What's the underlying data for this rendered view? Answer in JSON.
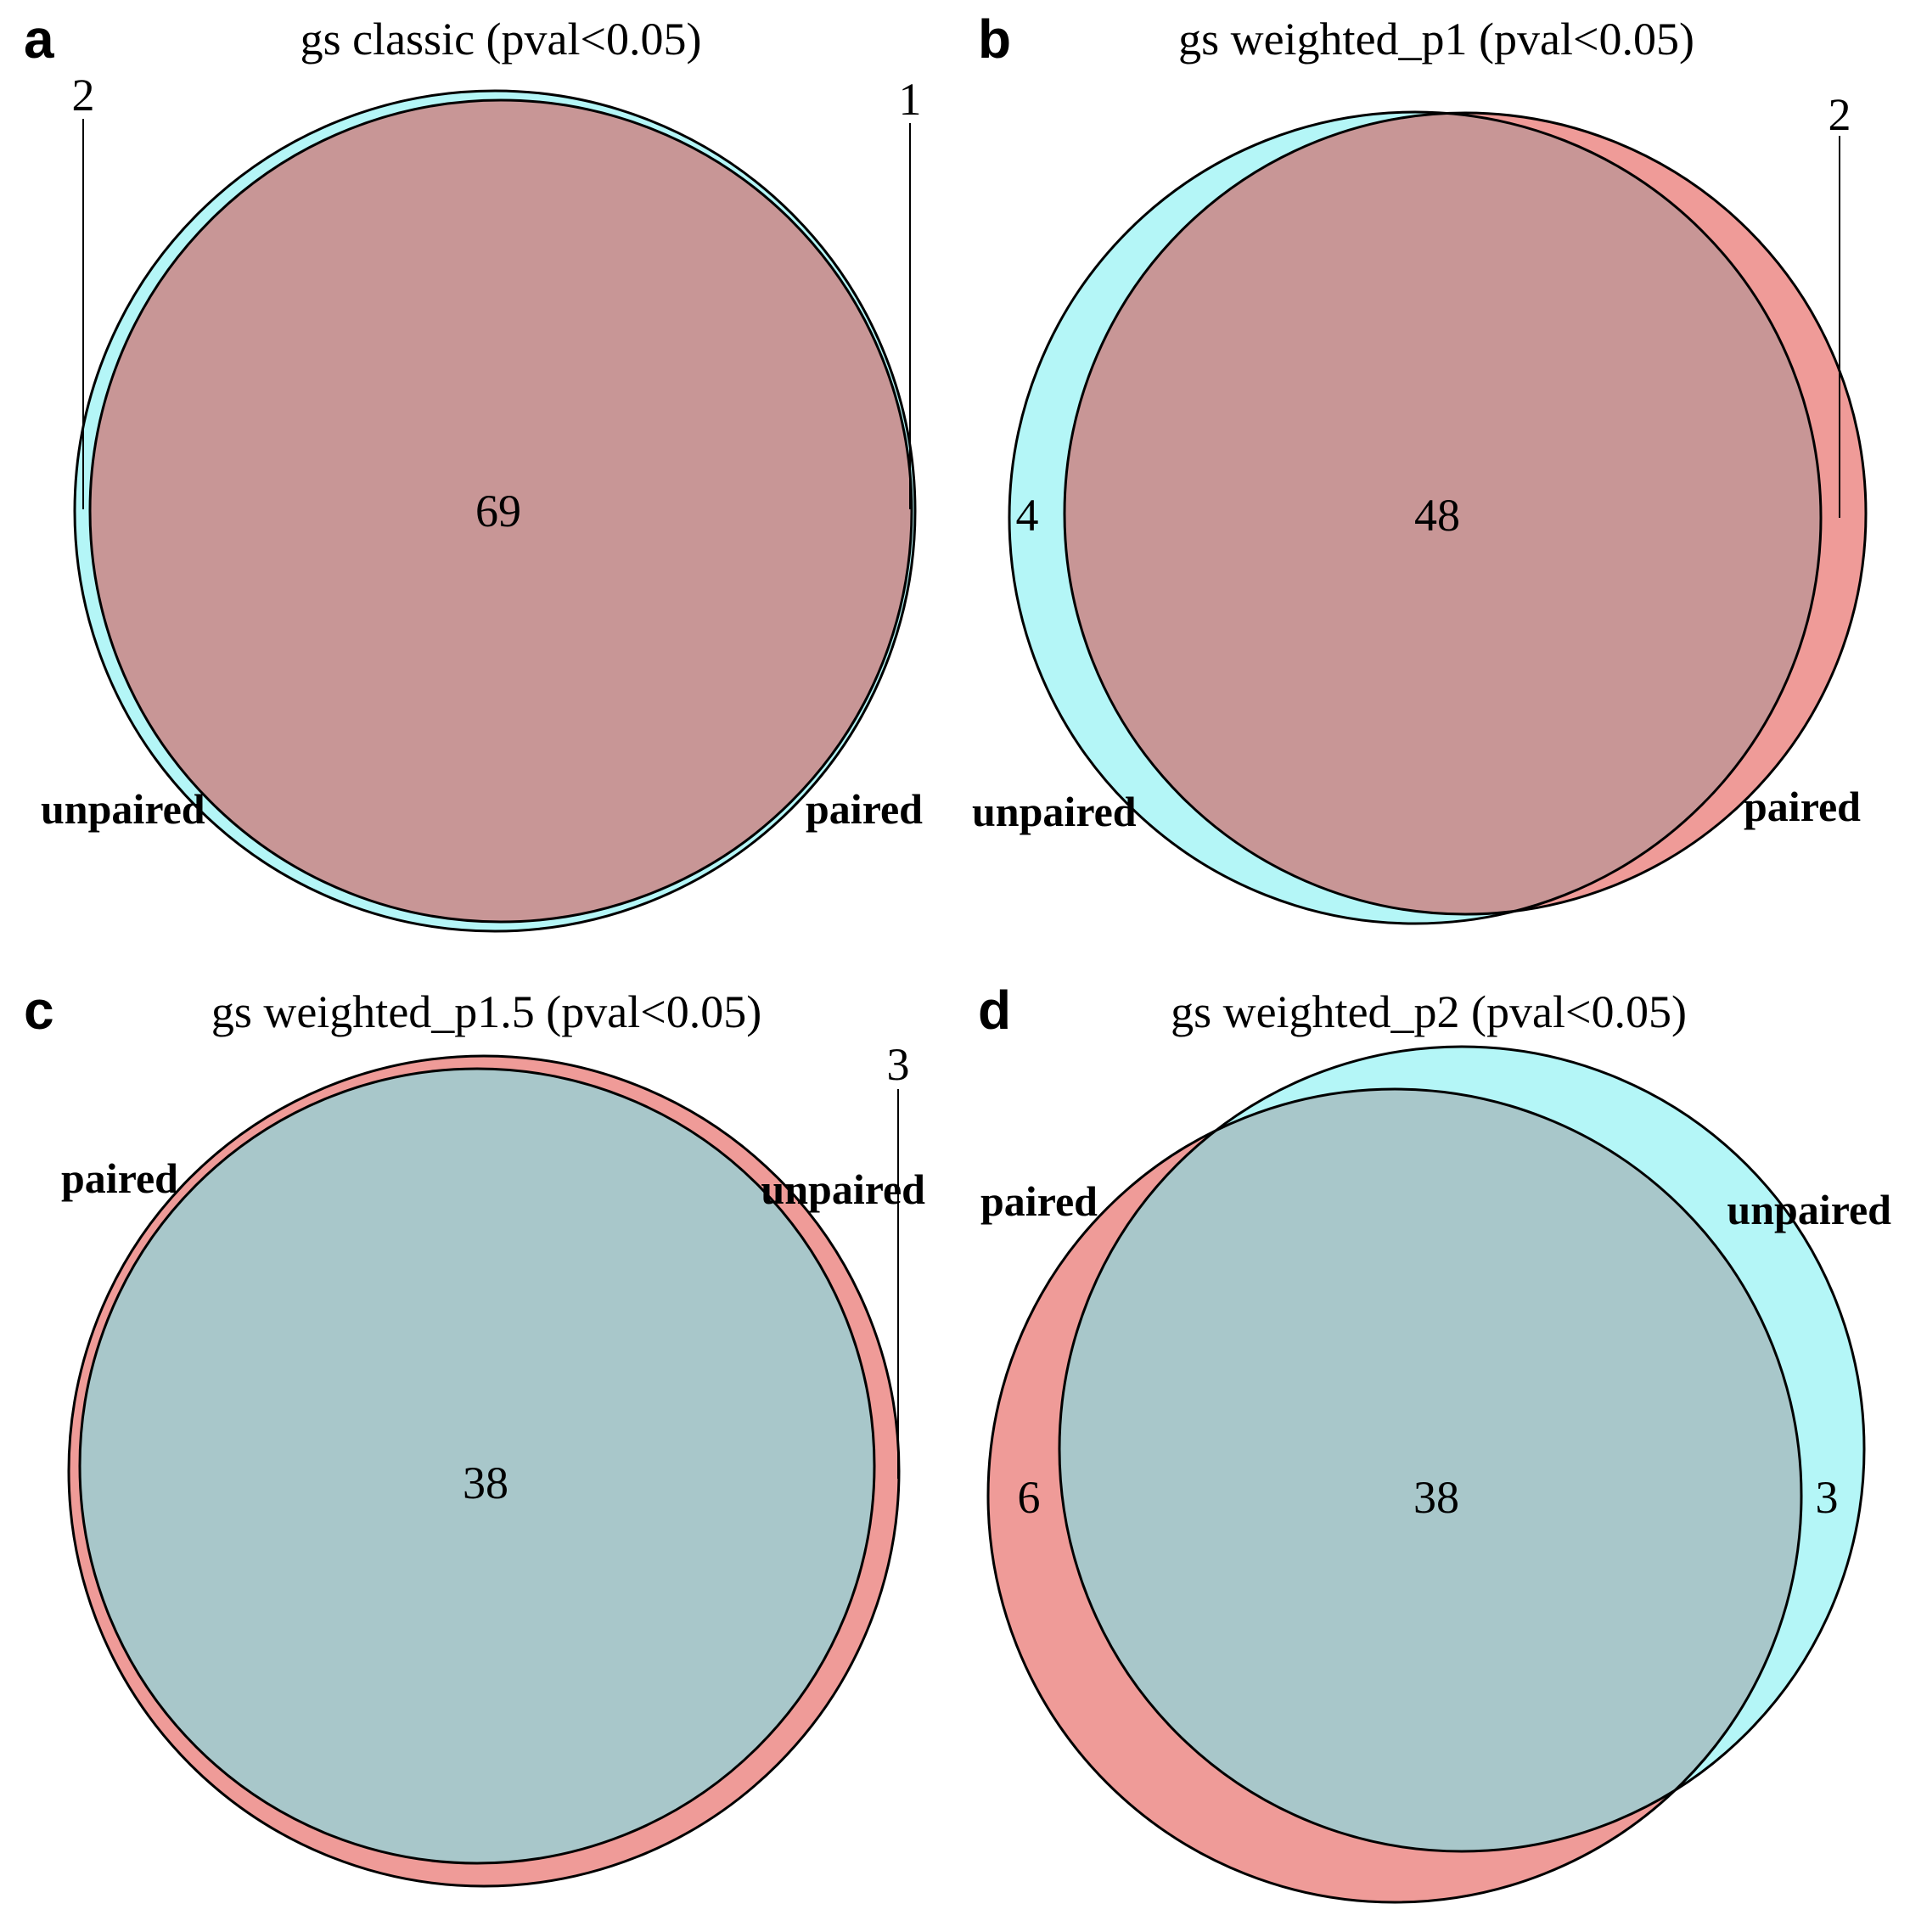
{
  "colors": {
    "paired": "#ef9b98",
    "unpaired": "#b4f6f7",
    "overlap_a_b": "#c89696",
    "overlap_c_d": "#a8c7ca",
    "outline": "#000000"
  },
  "panels": [
    {
      "letter": "a",
      "title": "gs classic (pval<0.05)",
      "sets": {
        "first": "unpaired",
        "second": "paired"
      },
      "counts": {
        "first_only": "2",
        "overlap": "69",
        "second_only": "1"
      }
    },
    {
      "letter": "b",
      "title": "gs weighted_p1 (pval<0.05)",
      "sets": {
        "first": "unpaired",
        "second": "paired"
      },
      "counts": {
        "first_only": "4",
        "overlap": "48",
        "second_only": "2"
      }
    },
    {
      "letter": "c",
      "title": "gs weighted_p1.5 (pval<0.05)",
      "sets": {
        "first": "paired",
        "second": "unpaired"
      },
      "counts": {
        "overlap": "38",
        "second_only": "3"
      }
    },
    {
      "letter": "d",
      "title": "gs weighted_p2 (pval<0.05)",
      "sets": {
        "first": "paired",
        "second": "unpaired"
      },
      "counts": {
        "first_only": "6",
        "overlap": "38",
        "second_only": "3"
      }
    }
  ]
}
